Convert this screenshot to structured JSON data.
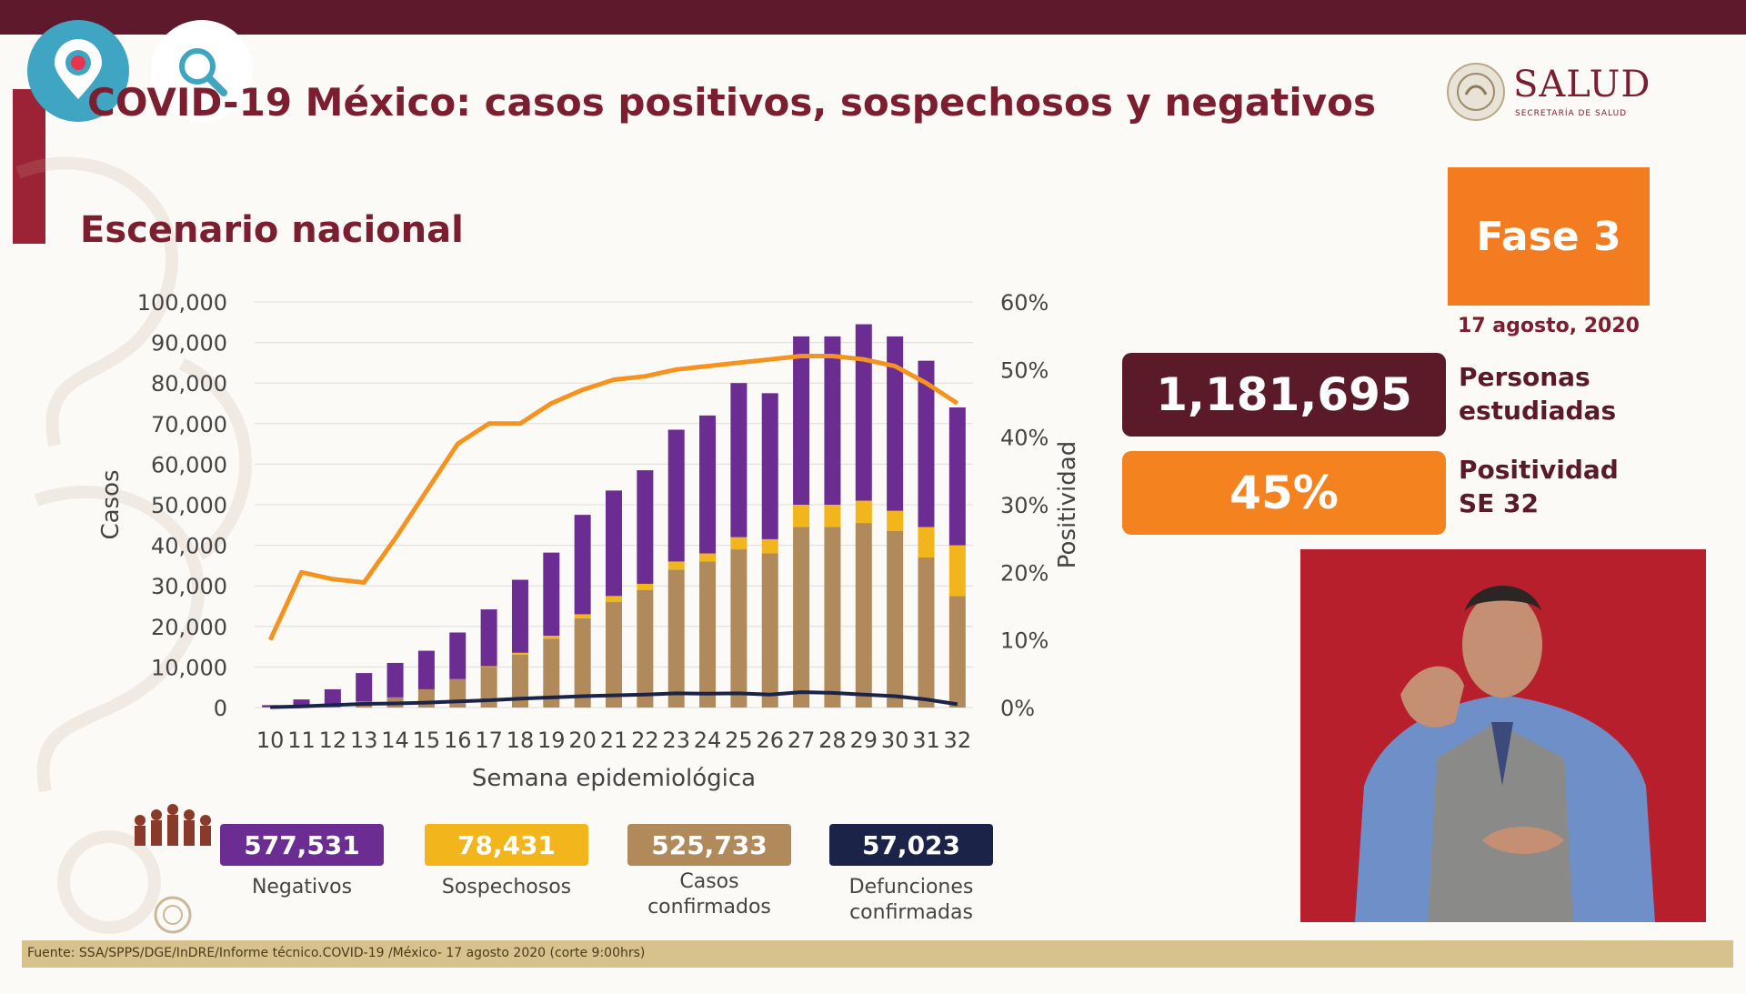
{
  "header": {
    "title": "COVID-19 México: casos positivos, sospechosos y negativos",
    "subtitle": "Escenario nacional"
  },
  "logo": {
    "word": "SALUD",
    "sub": "SECRETARÍA DE SALUD"
  },
  "phase": {
    "label": "Fase 3",
    "date": "17 agosto, 2020"
  },
  "stats": [
    {
      "value": "1,181,695",
      "label_line1": "Personas",
      "label_line2": "estudiadas",
      "color": "#5b1a28"
    },
    {
      "value": "45%",
      "label_line1": "Positividad",
      "label_line2": "SE 32",
      "color": "#f4831f"
    }
  ],
  "legend": [
    {
      "value": "577,531",
      "caption_line1": "Negativos",
      "caption_line2": "",
      "color": "#6b2d91"
    },
    {
      "value": "78,431",
      "caption_line1": "Sospechosos",
      "caption_line2": "",
      "color": "#f2b51b"
    },
    {
      "value": "525,733",
      "caption_line1": "Casos",
      "caption_line2": "confirmados",
      "color": "#b08a5a"
    },
    {
      "value": "57,023",
      "caption_line1": "Defunciones",
      "caption_line2": "confirmadas",
      "color": "#1b2348"
    }
  ],
  "footer": {
    "source": "Fuente: SSA/SPPS/DGE/InDRE/Informe técnico.COVID-19 /México- 17 agosto 2020 (corte 9:00hrs)"
  },
  "icons": {
    "periscope": "periscope-icon",
    "search": "search-icon"
  },
  "chart_data": {
    "type": "bar",
    "stacked": true,
    "categories": [
      "10",
      "11",
      "12",
      "13",
      "14",
      "15",
      "16",
      "17",
      "18",
      "19",
      "20",
      "21",
      "22",
      "23",
      "24",
      "25",
      "26",
      "27",
      "28",
      "29",
      "30",
      "31",
      "32"
    ],
    "xlabel": "Semana epidemiológica",
    "ylabel": "Casos",
    "y2label": "Positividad",
    "ylim": [
      0,
      100000
    ],
    "y2lim": [
      0,
      60
    ],
    "yticks": [
      "0",
      "10,000",
      "20,000",
      "30,000",
      "40,000",
      "50,000",
      "60,000",
      "70,000",
      "80,000",
      "90,000",
      "100,000"
    ],
    "y2ticks": [
      "0%",
      "10%",
      "20%",
      "30%",
      "40%",
      "50%",
      "60%"
    ],
    "grid": true,
    "series": [
      {
        "color": "#b08a5a",
        "values": [
          100,
          500,
          1000,
          1500,
          2500,
          4500,
          7000,
          10000,
          13000,
          17000,
          22000,
          26000,
          29000,
          34000,
          36000,
          39000,
          38000,
          44500,
          44500,
          45500,
          43500,
          37000,
          27500
        ]
      },
      {
        "color": "#f2b51b",
        "values": [
          0,
          0,
          0,
          0,
          0,
          0,
          0,
          200,
          500,
          700,
          1000,
          1500,
          1500,
          2000,
          2000,
          3000,
          3500,
          5500,
          5500,
          5500,
          5000,
          7500,
          12500
        ]
      },
      {
        "color": "#6b2d91",
        "values": [
          500,
          1500,
          3500,
          7000,
          8500,
          9500,
          11500,
          14000,
          18000,
          20500,
          24500,
          26000,
          28000,
          32500,
          34000,
          38000,
          36000,
          41500,
          41500,
          43500,
          43000,
          41000,
          34000
        ]
      },
      {
        "color": "#f4931f",
        "axis": "y2",
        "values": [
          10,
          20,
          19,
          18.5,
          25,
          32,
          39,
          42,
          42,
          45,
          47,
          48.5,
          49,
          50,
          50.5,
          51,
          51.5,
          52,
          52,
          51.5,
          50.5,
          48,
          45
        ]
      },
      {
        "color": "#1b2348",
        "values": [
          100,
          300,
          600,
          900,
          1000,
          1200,
          1500,
          1800,
          2200,
          2500,
          2800,
          3000,
          3200,
          3500,
          3400,
          3500,
          3200,
          3800,
          3600,
          3200,
          2800,
          2000,
          800
        ]
      }
    ]
  }
}
